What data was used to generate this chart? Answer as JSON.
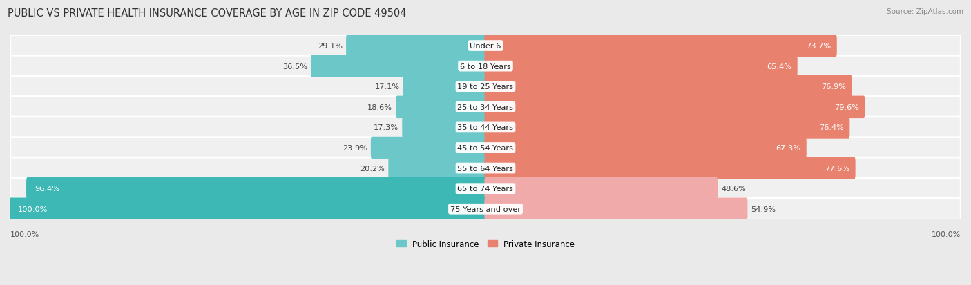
{
  "title": "PUBLIC VS PRIVATE HEALTH INSURANCE COVERAGE BY AGE IN ZIP CODE 49504",
  "source": "Source: ZipAtlas.com",
  "categories": [
    "Under 6",
    "6 to 18 Years",
    "19 to 25 Years",
    "25 to 34 Years",
    "35 to 44 Years",
    "45 to 54 Years",
    "55 to 64 Years",
    "65 to 74 Years",
    "75 Years and over"
  ],
  "public_values": [
    29.1,
    36.5,
    17.1,
    18.6,
    17.3,
    23.9,
    20.2,
    96.4,
    100.0
  ],
  "private_values": [
    73.7,
    65.4,
    76.9,
    79.6,
    76.4,
    67.3,
    77.6,
    48.6,
    54.9
  ],
  "public_color_normal": "#6cc8c8",
  "public_color_strong": "#3db8b4",
  "private_color_normal": "#e8826e",
  "private_color_light": "#f0aaaa",
  "bg_color": "#eaeaea",
  "row_bg_color": "#f0f0f0",
  "row_edge_color": "#ffffff",
  "bar_height": 0.6,
  "title_fontsize": 10.5,
  "label_fontsize": 8.2,
  "tick_fontsize": 8,
  "legend_fontsize": 8.5,
  "source_fontsize": 7.5
}
